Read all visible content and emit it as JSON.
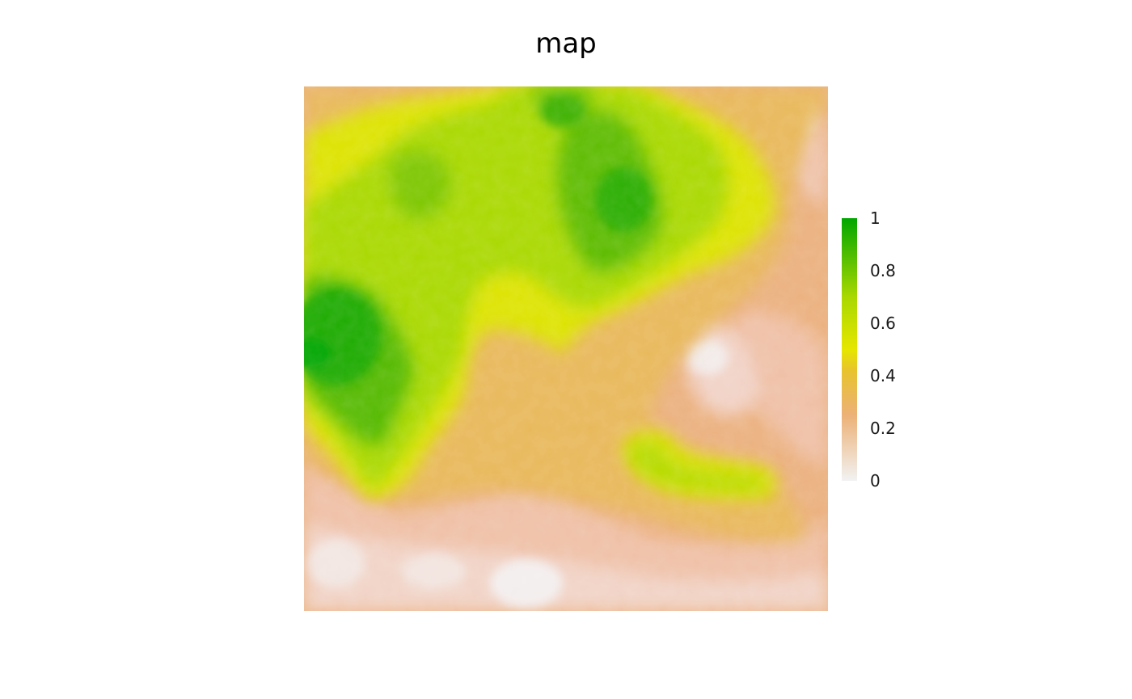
{
  "title": "map",
  "legend": {
    "ticks": [
      "1",
      "0.8",
      "0.6",
      "0.4",
      "0.2",
      "0"
    ],
    "tick_values": [
      1,
      0.8,
      0.6,
      0.4,
      0.2,
      0
    ],
    "range": [
      0,
      1
    ],
    "palette": {
      "0": "#f2f2f2",
      "0.25": "#ecb176",
      "0.5": "#e6e600",
      "0.75": "#77c400",
      "1": "#00a600"
    }
  },
  "chart_data": {
    "type": "heatmap",
    "title": "map",
    "value_range": [
      0,
      1
    ],
    "colorbar_ticks": [
      0,
      0.2,
      0.4,
      0.6,
      0.8,
      1
    ],
    "legend_position": "right"
  }
}
